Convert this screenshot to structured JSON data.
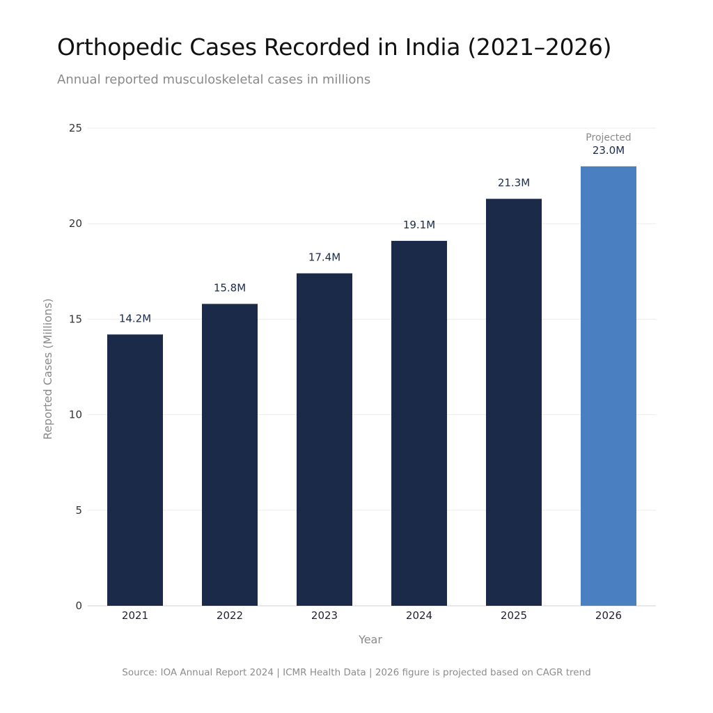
{
  "title": "Orthopedic Cases Recorded in India (2021–2026)",
  "subtitle": "Annual reported musculoskeletal cases in millions",
  "footer": "Source: IOA Annual Report 2024 | ICMR Health Data | 2026 figure is projected based on CAGR trend",
  "chart_data": {
    "type": "bar",
    "categories": [
      "2021",
      "2022",
      "2023",
      "2024",
      "2025",
      "2026"
    ],
    "values": [
      14.2,
      15.8,
      17.4,
      19.1,
      21.3,
      23.0
    ],
    "data_labels": [
      "14.2M",
      "15.8M",
      "17.4M",
      "19.1M",
      "21.3M",
      "23.0M"
    ],
    "projected": [
      false,
      false,
      false,
      false,
      false,
      true
    ],
    "projected_label": "Projected",
    "xlabel": "Year",
    "ylabel": "Reported Cases (Millions)",
    "ylim": [
      0,
      25
    ],
    "yticks": [
      0,
      5,
      10,
      15,
      20,
      25
    ],
    "grid": true,
    "colors": {
      "actual": "#1c2a4a",
      "projected": "#4a7fc1",
      "grid": "#ececec",
      "axis": "#d0d0d0"
    }
  }
}
